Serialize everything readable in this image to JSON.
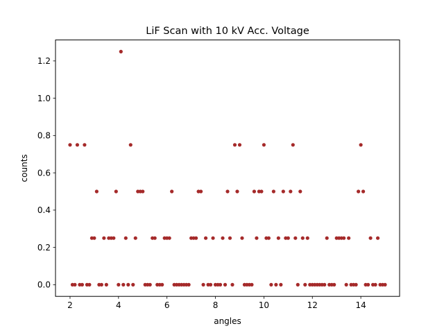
{
  "chart_data": {
    "type": "scatter",
    "title": "LiF Scan with 10 kV Acc. Voltage",
    "xlabel": "angles",
    "ylabel": "counts",
    "xlim": [
      1.4,
      15.6
    ],
    "ylim": [
      -0.0625,
      1.3125
    ],
    "xticks": [
      2,
      4,
      6,
      8,
      10,
      12,
      14
    ],
    "yticks": [
      0.0,
      0.2,
      0.4,
      0.6,
      0.8,
      1.0,
      1.2
    ],
    "grid": false,
    "marker_color": "#a52a2a",
    "series": [
      {
        "x": [
          2.0,
          2.1,
          2.2,
          2.3,
          2.4,
          2.5,
          2.6,
          2.7,
          2.8,
          2.9,
          3.0,
          3.1,
          3.2,
          3.3,
          3.4,
          3.5,
          3.6,
          3.7,
          3.8,
          3.9,
          4.0,
          4.1,
          4.2,
          4.3,
          4.4,
          4.5,
          4.6,
          4.7,
          4.8,
          4.9,
          5.0,
          5.1,
          5.2,
          5.3,
          5.4,
          5.5,
          5.6,
          5.7,
          5.8,
          5.9,
          6.0,
          6.1,
          6.2,
          6.3,
          6.4,
          6.5,
          6.6,
          6.7,
          6.8,
          6.9,
          7.0,
          7.1,
          7.2,
          7.3,
          7.4,
          7.5,
          7.6,
          7.7,
          7.8,
          7.9,
          8.0,
          8.1,
          8.2,
          8.3,
          8.4,
          8.5,
          8.6,
          8.7,
          8.8,
          8.9,
          9.0,
          9.1,
          9.2,
          9.3,
          9.4,
          9.5,
          9.6,
          9.7,
          9.8,
          9.9,
          10.0,
          10.1,
          10.2,
          10.3,
          10.4,
          10.5,
          10.6,
          10.7,
          10.8,
          10.9,
          11.0,
          11.1,
          11.2,
          11.3,
          11.4,
          11.5,
          11.6,
          11.7,
          11.8,
          11.9,
          12.0,
          12.1,
          12.2,
          12.3,
          12.4,
          12.5,
          12.6,
          12.7,
          12.8,
          12.9,
          13.0,
          13.1,
          13.2,
          13.3,
          13.4,
          13.5,
          13.6,
          13.7,
          13.8,
          13.9,
          14.0,
          14.1,
          14.2,
          14.3,
          14.4,
          14.5,
          14.6,
          14.7,
          14.8,
          14.9,
          15.0
        ],
        "y": [
          0.75,
          0.0,
          0.0,
          0.75,
          0.0,
          0.0,
          0.75,
          0.0,
          0.0,
          0.25,
          0.25,
          0.5,
          0.0,
          0.0,
          0.25,
          0.0,
          0.25,
          0.25,
          0.25,
          0.5,
          0.0,
          1.25,
          0.0,
          0.25,
          0.0,
          0.75,
          0.0,
          0.25,
          0.5,
          0.5,
          0.5,
          0.0,
          0.0,
          0.0,
          0.25,
          0.25,
          0.0,
          0.0,
          0.0,
          0.25,
          0.25,
          0.25,
          0.5,
          0.0,
          0.0,
          0.0,
          0.0,
          0.0,
          0.0,
          0.0,
          0.25,
          0.25,
          0.25,
          0.5,
          0.5,
          0.0,
          0.25,
          0.0,
          0.0,
          0.25,
          0.0,
          0.0,
          0.0,
          0.25,
          0.0,
          0.5,
          0.25,
          0.0,
          0.75,
          0.5,
          0.75,
          0.25,
          0.0,
          0.0,
          0.0,
          0.0,
          0.5,
          0.25,
          0.5,
          0.5,
          0.75,
          0.25,
          0.25,
          0.0,
          0.5,
          0.0,
          0.25,
          0.0,
          0.5,
          0.25,
          0.25,
          0.5,
          0.75,
          0.25,
          0.0,
          0.5,
          0.25,
          0.0,
          0.25,
          0.0,
          0.0,
          0.0,
          0.0,
          0.0,
          0.0,
          0.0,
          0.25,
          0.0,
          0.0,
          0.0,
          0.25,
          0.25,
          0.25,
          0.25,
          0.0,
          0.25,
          0.0,
          0.0,
          0.0,
          0.5,
          0.75,
          0.5,
          0.0,
          0.0,
          0.25,
          0.0,
          0.0,
          0.25,
          0.0,
          0.0,
          0.0
        ]
      }
    ]
  }
}
